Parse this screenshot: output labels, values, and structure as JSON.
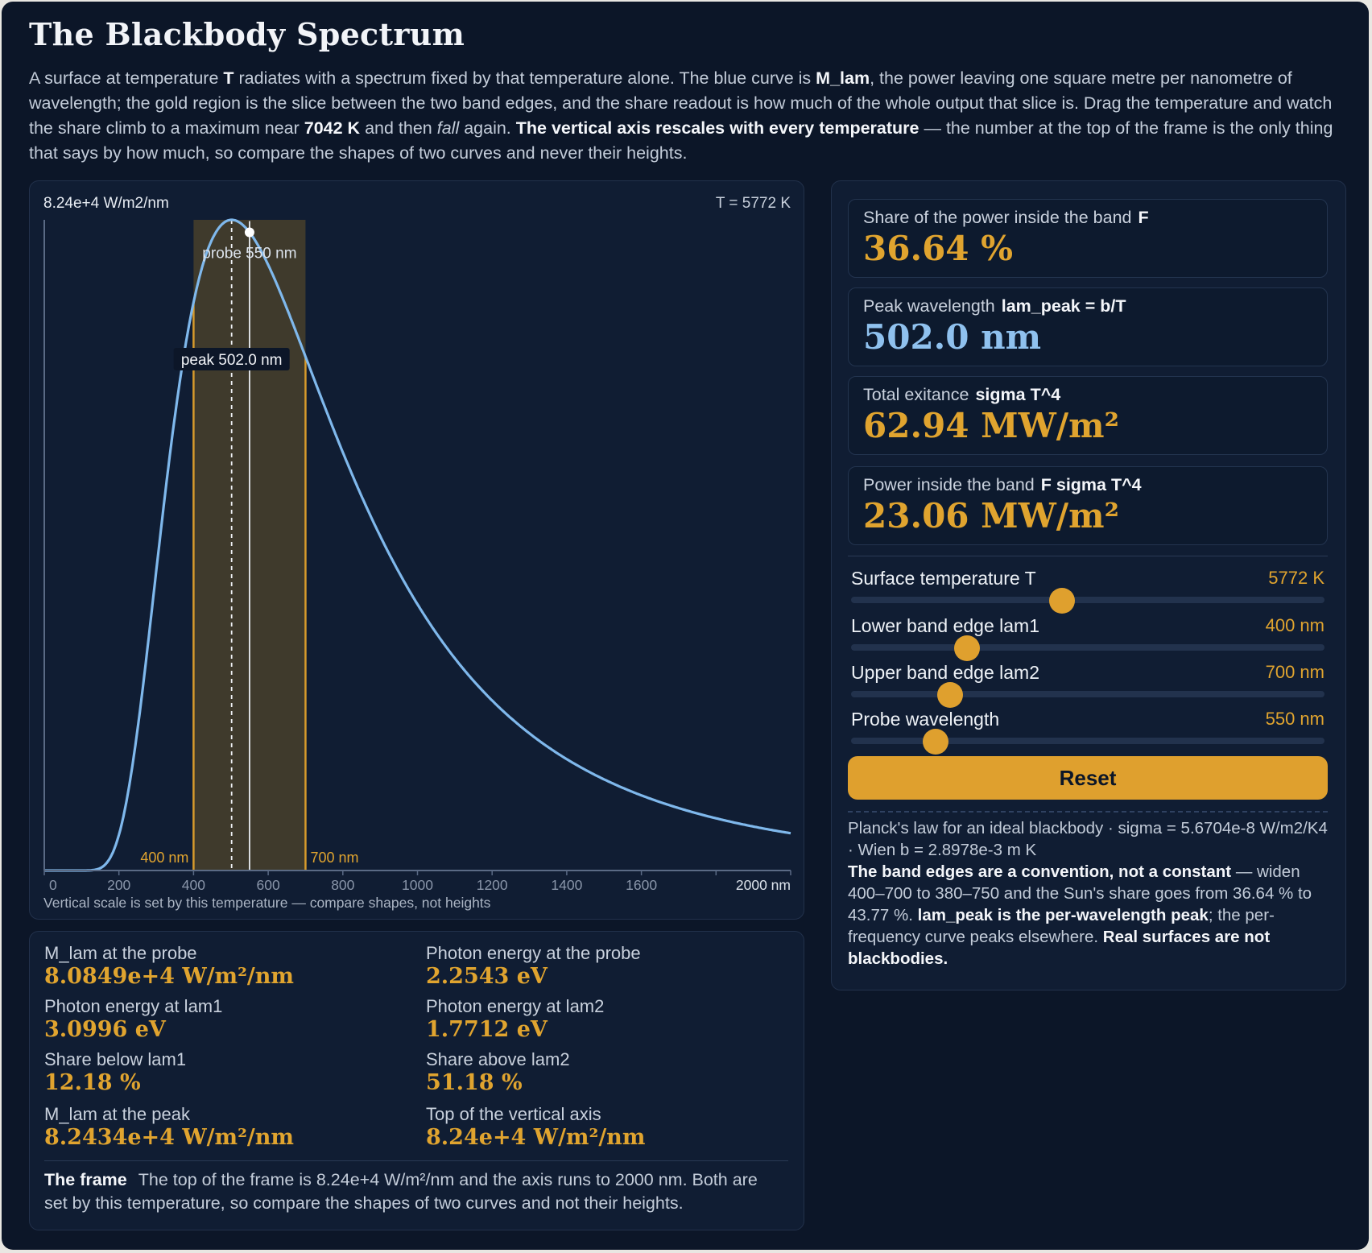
{
  "title": "The Blackbody Spectrum",
  "intro": {
    "p1": "A surface at temperature ",
    "T": "T",
    "p2": " radiates with a spectrum fixed by that temperature alone. The blue curve is ",
    "mlam": "M_lam",
    "p3": ", the power leaving one square metre per nanometre of wavelength; the gold region is the slice between the two band edges, and the share readout is how much of the whole output that slice is. Drag the temperature and watch the share climb to a maximum near ",
    "max_temp": "7042 K",
    "p4": " and then ",
    "fall": "fall",
    "p5": " again. ",
    "rescale": "The vertical axis rescales with every temperature",
    "p6": " — the number at the top of the frame is the only thing that says by how much, so compare the shapes of two curves and never their heights."
  },
  "chart": {
    "top_label": "8.24e+4 W/m2/nm",
    "temp_label": "T = 5772 K",
    "probe_label": "probe 550 nm",
    "peak_label": "peak 502.0 nm",
    "band_low_label": "400 nm",
    "band_high_label": "700 nm",
    "caption": "Vertical scale is set by this temperature — compare shapes, not heights",
    "tick_labels": [
      "0",
      "200",
      "400",
      "600",
      "800",
      "1000",
      "1200",
      "1400",
      "1600",
      "2000 nm"
    ],
    "colors": {
      "curve": "#7fb8ec",
      "band": "#3f3a2c",
      "band_edge": "#d69a2c",
      "axis": "#5a6a85"
    }
  },
  "chart_data": {
    "type": "line",
    "title": "",
    "xlabel": "",
    "ylabel": "",
    "x_unit": "nm",
    "y_unit": "W/m2/nm",
    "xlim": [
      0,
      2000
    ],
    "ylim": [
      0,
      82400
    ],
    "temperature_K": 5772,
    "band_nm": [
      400,
      700
    ],
    "probe_nm": 550,
    "peak_nm": 502.0,
    "series": [
      {
        "x": [
          100,
          200,
          250,
          300,
          350,
          400,
          450,
          500,
          550,
          600,
          650,
          700,
          800,
          900,
          1000,
          1200,
          1400,
          1600,
          1800,
          2000
        ],
        "y": [
          0,
          960,
          6830,
          20500,
          39700,
          60400,
          75700,
          82400,
          80800,
          74900,
          66500,
          57800,
          42800,
          31600,
          23600,
          13800,
          8640,
          5710,
          3950,
          2830
        ]
      }
    ]
  },
  "metrics": [
    {
      "label": "M_lam at the probe",
      "value": "8.0849e+4 W/m²/nm"
    },
    {
      "label": "Photon energy at the probe",
      "value": "2.2543 eV"
    },
    {
      "label": "Photon energy at lam1",
      "value": "3.0996 eV"
    },
    {
      "label": "Photon energy at lam2",
      "value": "1.7712 eV"
    },
    {
      "label": "Share below lam1",
      "value": "12.18 %"
    },
    {
      "label": "Share above lam2",
      "value": "51.18 %"
    },
    {
      "label": "M_lam at the peak",
      "value": "8.2434e+4 W/m²/nm"
    },
    {
      "label": "Top of the vertical axis",
      "value": "8.24e+4 W/m²/nm"
    }
  ],
  "frame_note": {
    "head": "The frame",
    "text": "The top of the frame is 8.24e+4 W/m²/nm and the axis runs to 2000 nm. Both are set by this temperature, so compare the shapes of two curves and not their heights."
  },
  "stats": [
    {
      "label": "Share of the power inside the band",
      "formula": "F",
      "value": "36.64 %"
    },
    {
      "label": "Peak wavelength",
      "formula": "lam_peak = b/T",
      "value": "502.0 nm"
    },
    {
      "label": "Total exitance",
      "formula": "sigma T^4",
      "value": "62.94 MW/m²"
    },
    {
      "label": "Power inside the band",
      "formula": "F sigma T^4",
      "value": "23.06 MW/m²"
    }
  ],
  "sliders": [
    {
      "name": "Surface temperature T",
      "value": "5772 K",
      "level": 0.445
    },
    {
      "name": "Lower band edge lam1",
      "value": "400 nm",
      "level": 0.245
    },
    {
      "name": "Upper band edge lam2",
      "value": "700 nm",
      "level": 0.21
    },
    {
      "name": "Probe wavelength",
      "value": "550 nm",
      "level": 0.178
    }
  ],
  "reset_label": "Reset",
  "footer": {
    "line1": "Planck's law for an ideal blackbody · sigma = 5.6704e-8 W/m2/K4 · Wien b = 2.8978e-3 m K",
    "b1": "The band edges are a convention, not a constant",
    "t1": " — widen 400–700 to 380–750 and the Sun's share goes from 36.64 % to 43.77 %. ",
    "b2": "lam_peak is the per-wavelength peak",
    "t2": "; the per-frequency curve peaks elsewhere. ",
    "b3": "Real surfaces are not blackbodies."
  }
}
